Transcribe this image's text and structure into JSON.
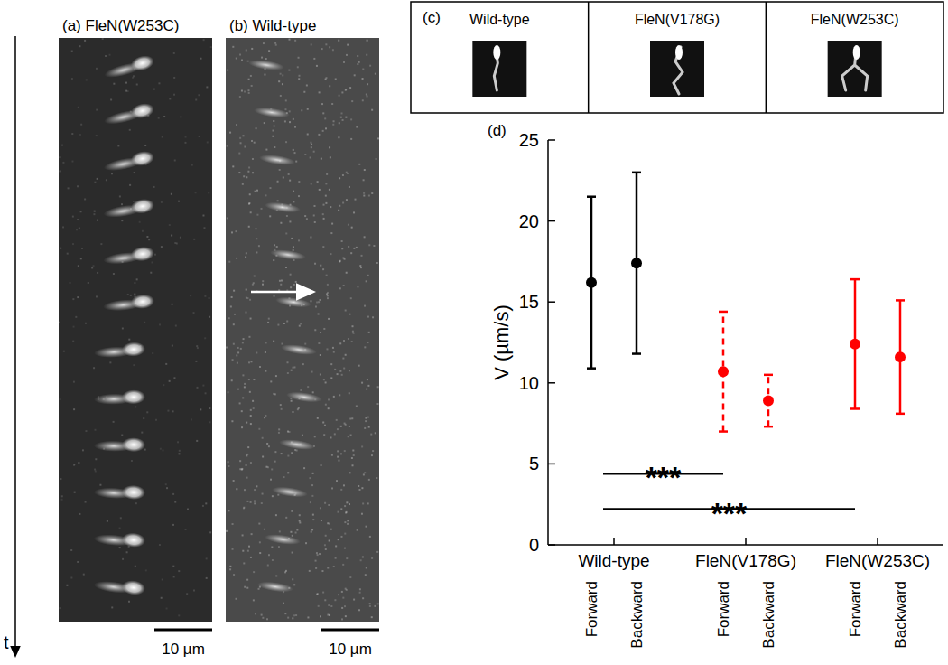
{
  "chart_data": {
    "type": "scatter",
    "categories": [
      "Forward",
      "Backward",
      "Forward",
      "Backward",
      "Forward",
      "Backward"
    ],
    "series": [
      {
        "name": "Wild-type",
        "color": "#000000",
        "line_style": "solid",
        "marker": "circle",
        "values": [
          16.2,
          17.4,
          null,
          null,
          null,
          null
        ],
        "errors": [
          5.3,
          5.6,
          null,
          null,
          null,
          null
        ]
      },
      {
        "name": "FleN(V178G)",
        "color": "#ff0000",
        "line_style": "dashed",
        "marker": "circle",
        "values": [
          null,
          null,
          10.7,
          8.9,
          null,
          null
        ],
        "errors": [
          null,
          null,
          3.7,
          1.6,
          null,
          null
        ]
      },
      {
        "name": "FleN(W253C)",
        "color": "#ff0000",
        "line_style": "solid",
        "marker": "circle",
        "values": [
          null,
          null,
          null,
          null,
          12.4,
          11.6
        ],
        "errors": [
          null,
          null,
          null,
          null,
          4.0,
          3.5
        ]
      }
    ],
    "y_label": "V (µm/s)",
    "ylim": [
      0,
      25
    ],
    "yticks": [
      0,
      5,
      10,
      15,
      20,
      25
    ],
    "significance": [
      {
        "from": 0,
        "to": 1,
        "y": 4.4,
        "label": "***"
      },
      {
        "from": 0,
        "to": 2,
        "y": 2.2,
        "label": "***"
      }
    ]
  },
  "panels": {
    "a": {
      "label": "(a)",
      "title": "FleN(W253C)",
      "scale_bar": "10 µm"
    },
    "b": {
      "label": "(b)",
      "title": "Wild-type",
      "scale_bar": "10 µm"
    },
    "c": {
      "label": "(c)",
      "cells": [
        "Wild-type",
        "FleN(V178G)",
        "FleN(W253C)"
      ]
    },
    "d": {
      "label": "(d)"
    },
    "time_axis": "t"
  }
}
